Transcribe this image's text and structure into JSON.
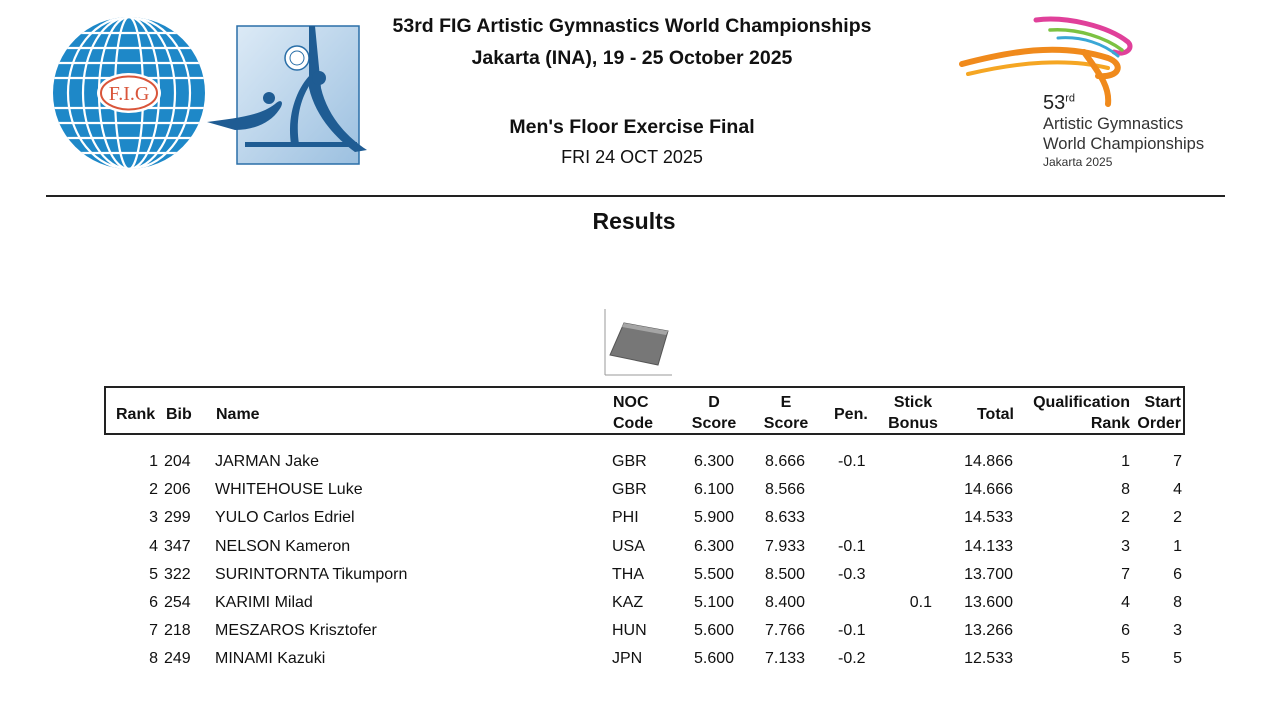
{
  "header": {
    "championship_title": "53rd FIG Artistic Gymnastics World Championships",
    "location_dates": "Jakarta (INA), 19 - 25 October 2025",
    "event_title": "Men's Floor Exercise Final",
    "event_date": "FRI 24 OCT 2025"
  },
  "logos": {
    "fig_text": "F.I.G",
    "event_ordinal": "53",
    "event_ordinal_suffix": "rd",
    "event_line1": "Artistic Gymnastics",
    "event_line2": "World Championships",
    "event_line3": "Jakarta 2025"
  },
  "section_title": "Results",
  "colors": {
    "fig_blue": "#1e88c8",
    "apparatus_blue": "#2a6fa8",
    "logo_orange": "#f08a1c",
    "logo_pink": "#e0409a",
    "logo_green": "#7cc242"
  },
  "table": {
    "headers": {
      "rank": "Rank",
      "bib": "Bib",
      "name": "Name",
      "noc_1": "NOC",
      "noc_2": "Code",
      "d_1": "D",
      "d_2": "Score",
      "e_1": "E",
      "e_2": "Score",
      "pen": "Pen.",
      "stick_1": "Stick",
      "stick_2": "Bonus",
      "total": "Total",
      "qual_1": "Qualification",
      "qual_2": "Rank",
      "start_1": "Start",
      "start_2": "Order"
    },
    "rows": [
      {
        "rank": "1",
        "bib": "204",
        "name": "JARMAN Jake",
        "noc": "GBR",
        "d": "6.300",
        "e": "8.666",
        "pen": "-0.1",
        "stick": "",
        "total": "14.866",
        "qual": "1",
        "start": "7"
      },
      {
        "rank": "2",
        "bib": "206",
        "name": "WHITEHOUSE Luke",
        "noc": "GBR",
        "d": "6.100",
        "e": "8.566",
        "pen": "",
        "stick": "",
        "total": "14.666",
        "qual": "8",
        "start": "4"
      },
      {
        "rank": "3",
        "bib": "299",
        "name": "YULO Carlos Edriel",
        "noc": "PHI",
        "d": "5.900",
        "e": "8.633",
        "pen": "",
        "stick": "",
        "total": "14.533",
        "qual": "2",
        "start": "2"
      },
      {
        "rank": "4",
        "bib": "347",
        "name": "NELSON Kameron",
        "noc": "USA",
        "d": "6.300",
        "e": "7.933",
        "pen": "-0.1",
        "stick": "",
        "total": "14.133",
        "qual": "3",
        "start": "1"
      },
      {
        "rank": "5",
        "bib": "322",
        "name": "SURINTORNTA Tikumporn",
        "noc": "THA",
        "d": "5.500",
        "e": "8.500",
        "pen": "-0.3",
        "stick": "",
        "total": "13.700",
        "qual": "7",
        "start": "6"
      },
      {
        "rank": "6",
        "bib": "254",
        "name": "KARIMI Milad",
        "noc": "KAZ",
        "d": "5.100",
        "e": "8.400",
        "pen": "",
        "stick": "0.1",
        "total": "13.600",
        "qual": "4",
        "start": "8"
      },
      {
        "rank": "7",
        "bib": "218",
        "name": "MESZAROS Krisztofer",
        "noc": "HUN",
        "d": "5.600",
        "e": "7.766",
        "pen": "-0.1",
        "stick": "",
        "total": "13.266",
        "qual": "6",
        "start": "3"
      },
      {
        "rank": "8",
        "bib": "249",
        "name": "MINAMI Kazuki",
        "noc": "JPN",
        "d": "5.600",
        "e": "7.133",
        "pen": "-0.2",
        "stick": "",
        "total": "12.533",
        "qual": "5",
        "start": "5"
      }
    ]
  }
}
